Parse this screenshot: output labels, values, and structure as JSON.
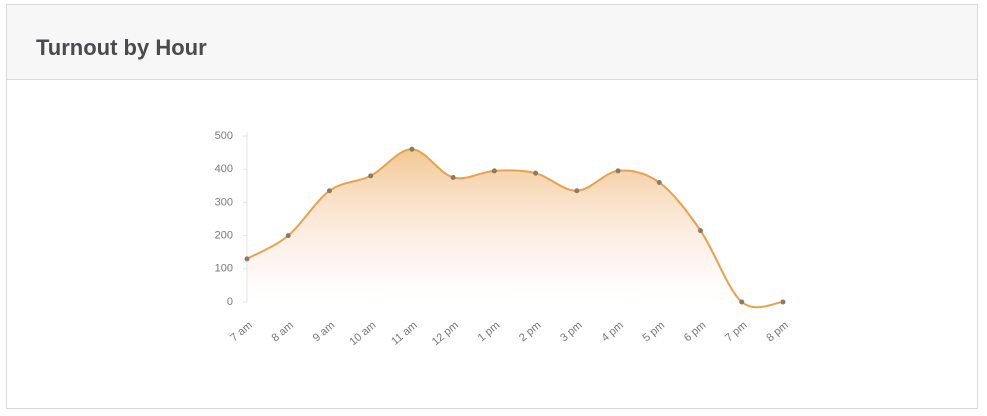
{
  "chart_data": {
    "type": "line",
    "title": "Turnout by Hour",
    "categories": [
      "7 am",
      "8 am",
      "9 am",
      "10 am",
      "11 am",
      "12 pm",
      "1 pm",
      "2 pm",
      "3 pm",
      "4 pm",
      "5 pm",
      "6 pm",
      "7 pm",
      "8 pm"
    ],
    "series": [
      {
        "name": "Turnout",
        "color": "#e8a24c",
        "values": [
          130,
          200,
          335,
          380,
          460,
          375,
          395,
          388,
          335,
          395,
          360,
          215,
          0,
          0
        ]
      }
    ],
    "ylim": [
      0,
      500
    ],
    "yticks": [
      0,
      100,
      200,
      300,
      400,
      500
    ]
  }
}
